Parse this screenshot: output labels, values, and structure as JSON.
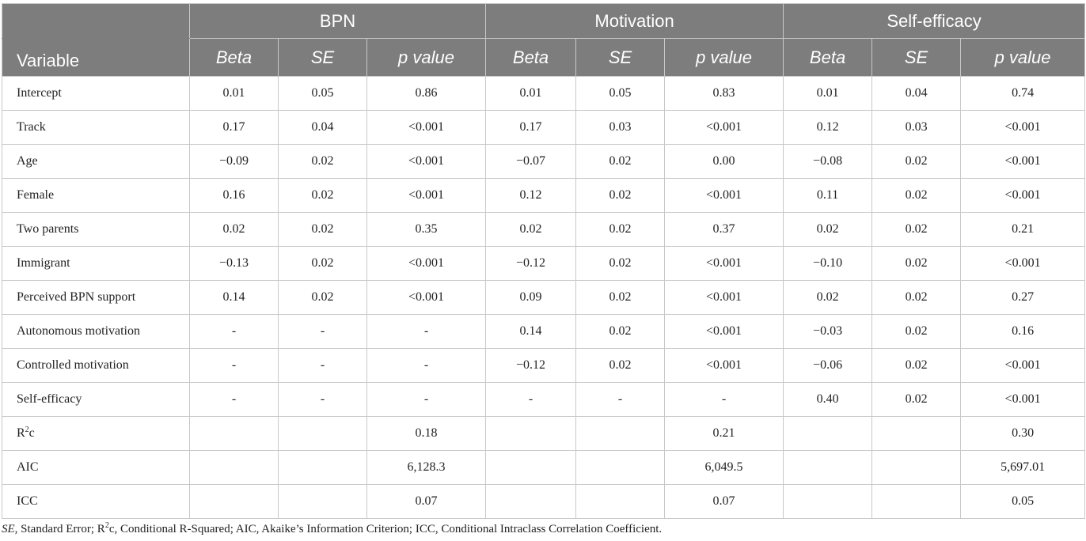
{
  "header": {
    "variable_label": "Variable",
    "groups": [
      "BPN",
      "Motivation",
      "Self-efficacy"
    ],
    "sub_headers": [
      "Beta",
      "SE",
      "p value"
    ]
  },
  "rows": [
    {
      "label": "Intercept",
      "cells": [
        "0.01",
        "0.05",
        "0.86",
        "0.01",
        "0.05",
        "0.83",
        "0.01",
        "0.04",
        "0.74"
      ]
    },
    {
      "label": "Track",
      "cells": [
        "0.17",
        "0.04",
        "<0.001",
        "0.17",
        "0.03",
        "<0.001",
        "0.12",
        "0.03",
        "<0.001"
      ]
    },
    {
      "label": "Age",
      "cells": [
        "−0.09",
        "0.02",
        "<0.001",
        "−0.07",
        "0.02",
        "0.00",
        "−0.08",
        "0.02",
        "<0.001"
      ]
    },
    {
      "label": "Female",
      "cells": [
        "0.16",
        "0.02",
        "<0.001",
        "0.12",
        "0.02",
        "<0.001",
        "0.11",
        "0.02",
        "<0.001"
      ]
    },
    {
      "label": "Two parents",
      "cells": [
        "0.02",
        "0.02",
        "0.35",
        "0.02",
        "0.02",
        "0.37",
        "0.02",
        "0.02",
        "0.21"
      ]
    },
    {
      "label": "Immigrant",
      "cells": [
        "−0.13",
        "0.02",
        "<0.001",
        "−0.12",
        "0.02",
        "<0.001",
        "−0.10",
        "0.02",
        "<0.001"
      ]
    },
    {
      "label": "Perceived BPN support",
      "cells": [
        "0.14",
        "0.02",
        "<0.001",
        "0.09",
        "0.02",
        "<0.001",
        "0.02",
        "0.02",
        "0.27"
      ]
    },
    {
      "label": "Autonomous motivation",
      "cells": [
        "-",
        "-",
        "-",
        "0.14",
        "0.02",
        "<0.001",
        "−0.03",
        "0.02",
        "0.16"
      ]
    },
    {
      "label": "Controlled motivation",
      "cells": [
        "-",
        "-",
        "-",
        "−0.12",
        "0.02",
        "<0.001",
        "−0.06",
        "0.02",
        "<0.001"
      ]
    },
    {
      "label": "Self-efficacy",
      "cells": [
        "-",
        "-",
        "-",
        "-",
        "-",
        "-",
        "0.40",
        "0.02",
        "<0.001"
      ]
    }
  ],
  "fit_rows": [
    {
      "label_main": "R",
      "label_sup": "2",
      "label_rest": "c",
      "cells": [
        "",
        "",
        "0.18",
        "",
        "",
        "0.21",
        "",
        "",
        "0.30"
      ]
    },
    {
      "label_main": "AIC",
      "label_sup": "",
      "label_rest": "",
      "cells": [
        "",
        "",
        "6,128.3",
        "",
        "",
        "6,049.5",
        "",
        "",
        "5,697.01"
      ]
    },
    {
      "label_main": "ICC",
      "label_sup": "",
      "label_rest": "",
      "cells": [
        "",
        "",
        "0.07",
        "",
        "",
        "0.07",
        "",
        "",
        "0.05"
      ]
    }
  ],
  "note": {
    "se_abbr": "SE",
    "se_text": ", Standard Error; R",
    "r2_sup": "2",
    "rest": "c, Conditional R-Squared; AIC, Akaike’s Information Criterion; ICC, Conditional Intraclass Correlation Coefficient."
  }
}
